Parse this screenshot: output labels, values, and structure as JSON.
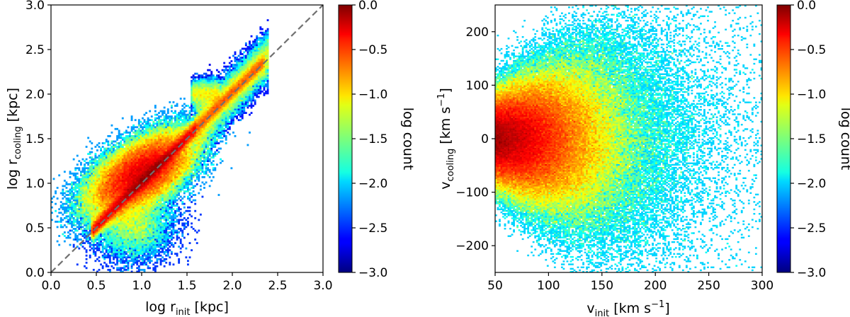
{
  "chart_data": [
    {
      "type": "heatmap",
      "xlabel": {
        "prefix": "log r",
        "sub": "init",
        "suffix": "  [kpc]"
      },
      "ylabel": {
        "prefix": "log r",
        "sub": "cooling",
        "suffix": "  [kpc]"
      },
      "xlim": [
        0.0,
        3.0
      ],
      "ylim": [
        0.0,
        3.0
      ],
      "xticks": [
        "0.0",
        "0.5",
        "1.0",
        "1.5",
        "2.0",
        "2.5",
        "3.0"
      ],
      "yticks": [
        "0.0",
        "0.5",
        "1.0",
        "1.5",
        "2.0",
        "2.5",
        "3.0"
      ],
      "reference_line": {
        "style": "dashed",
        "color": "#707070",
        "x": [
          0.0,
          3.0
        ],
        "y": [
          0.0,
          3.0
        ]
      },
      "colorbar": {
        "label": "log count",
        "range": [
          -3.0,
          0.0
        ],
        "ticks": [
          "0.0",
          "−0.5",
          "−1.0",
          "−1.5",
          "−2.0",
          "−2.5",
          "−3.0"
        ]
      }
    },
    {
      "type": "heatmap",
      "xlabel": {
        "prefix": "v",
        "sub": "init",
        "suffix": "  [km s",
        "sup": "−1",
        "end": "]"
      },
      "ylabel": {
        "prefix": "v",
        "sub": "cooling",
        "suffix": "  [km s",
        "sup": "−1",
        "end": "]"
      },
      "xlim": [
        50,
        300
      ],
      "ylim": [
        -250,
        250
      ],
      "xticks": [
        "50",
        "100",
        "150",
        "200",
        "250",
        "300"
      ],
      "yticks": [
        "200",
        "100",
        "0",
        "−100",
        "−200"
      ],
      "colorbar": {
        "label": "log count",
        "range": [
          -3.0,
          0.0
        ],
        "ticks": [
          "0.0",
          "−0.5",
          "−1.0",
          "−1.5",
          "−2.0",
          "−2.5",
          "−3.0"
        ]
      }
    }
  ]
}
